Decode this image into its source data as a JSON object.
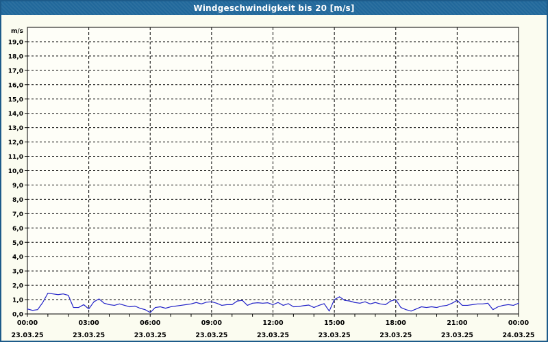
{
  "window": {
    "title": "Windgeschwindigkeit bis 20 [m/s]"
  },
  "colors": {
    "titlebar_bg": "#21689B",
    "titlebar_text": "#FFFFFF",
    "window_border": "#1D5B8A",
    "background": "#FBFCF0",
    "plot_background": "#FEFEF8",
    "grid": "#000000",
    "axis": "#000000",
    "series_line": "#2121C8",
    "label_text": "#000000"
  },
  "y_axis": {
    "unit": "m/s",
    "min": 0,
    "max": 20,
    "tick_labels": [
      "0,0",
      "1,0",
      "2,0",
      "3,0",
      "4,0",
      "5,0",
      "6,0",
      "7,0",
      "8,0",
      "9,0",
      "10,0",
      "11,0",
      "12,0",
      "13,0",
      "14,0",
      "15,0",
      "16,0",
      "17,0",
      "18,0",
      "19,0"
    ]
  },
  "x_axis": {
    "minor_tick_hours": 1,
    "major_tick_hours": 3,
    "labels": [
      {
        "time": "00:00",
        "date": "23.03.25"
      },
      {
        "time": "03:00",
        "date": "23.03.25"
      },
      {
        "time": "06:00",
        "date": "23.03.25"
      },
      {
        "time": "09:00",
        "date": "23.03.25"
      },
      {
        "time": "12:00",
        "date": "23.03.25"
      },
      {
        "time": "15:00",
        "date": "23.03.25"
      },
      {
        "time": "18:00",
        "date": "23.03.25"
      },
      {
        "time": "21:00",
        "date": "23.03.25"
      },
      {
        "time": "00:00",
        "date": "24.03.25"
      }
    ]
  },
  "chart_data": {
    "type": "line",
    "title": "Windgeschwindigkeit bis 20 [m/s]",
    "xlabel": "",
    "ylabel": "m/s",
    "ylim": [
      0,
      20
    ],
    "x_range_hours": [
      0,
      24
    ],
    "grid": true,
    "legend": null,
    "start_label": "23.03.25 00:00",
    "end_label": "24.03.25 00:00",
    "sample_interval_minutes": 15,
    "values_mps": [
      0.35,
      0.25,
      0.3,
      0.8,
      1.45,
      1.4,
      1.35,
      1.4,
      1.3,
      0.45,
      0.45,
      0.65,
      0.35,
      0.85,
      1.05,
      0.75,
      0.65,
      0.6,
      0.7,
      0.6,
      0.5,
      0.55,
      0.4,
      0.3,
      0.1,
      0.45,
      0.5,
      0.4,
      0.5,
      0.55,
      0.6,
      0.65,
      0.7,
      0.8,
      0.7,
      0.82,
      0.85,
      0.75,
      0.6,
      0.65,
      0.65,
      0.9,
      0.95,
      0.6,
      0.75,
      0.78,
      0.75,
      0.78,
      0.65,
      0.8,
      0.6,
      0.72,
      0.5,
      0.52,
      0.58,
      0.62,
      0.45,
      0.6,
      0.72,
      0.2,
      1.0,
      1.2,
      0.95,
      0.9,
      0.8,
      0.75,
      0.85,
      0.7,
      0.8,
      0.7,
      0.65,
      0.9,
      1.0,
      0.45,
      0.3,
      0.2,
      0.35,
      0.5,
      0.45,
      0.5,
      0.45,
      0.55,
      0.6,
      0.75,
      0.95,
      0.6,
      0.6,
      0.65,
      0.7,
      0.7,
      0.75,
      0.3,
      0.5,
      0.6,
      0.65,
      0.6,
      0.75
    ]
  }
}
